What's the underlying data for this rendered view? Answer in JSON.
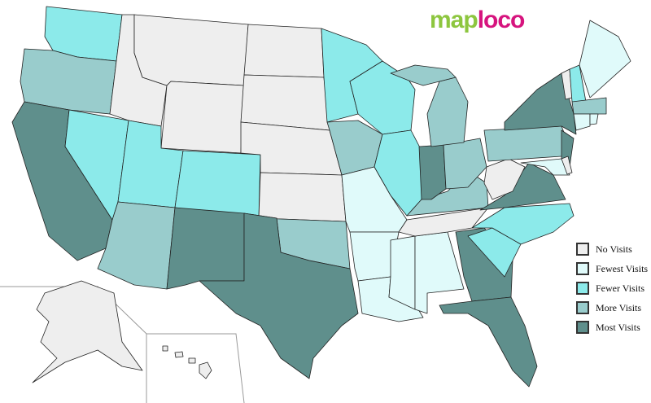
{
  "logo": {
    "part1": "map",
    "part2": "loco"
  },
  "legend": [
    {
      "key": "none",
      "label": "No Visits",
      "color": "#eeeeee"
    },
    {
      "key": "fewest",
      "label": "Fewest Visits",
      "color": "#e0fafa"
    },
    {
      "key": "fewer",
      "label": "Fewer Visits",
      "color": "#8ceaea"
    },
    {
      "key": "more",
      "label": "More Visits",
      "color": "#99cccc"
    },
    {
      "key": "most",
      "label": "Most Visits",
      "color": "#5f8f8c"
    }
  ],
  "states": {
    "WA": "fewer",
    "OR": "more",
    "CA": "most",
    "NV": "fewer",
    "ID": "none",
    "MT": "none",
    "WY": "none",
    "UT": "fewer",
    "CO": "fewer",
    "AZ": "more",
    "NM": "most",
    "ND": "none",
    "SD": "none",
    "NE": "none",
    "KS": "none",
    "OK": "more",
    "TX": "most",
    "MN": "fewer",
    "IA": "more",
    "MO": "fewest",
    "AR": "fewest",
    "LA": "fewest",
    "WI": "fewer",
    "IL": "fewer",
    "MS": "fewest",
    "AL": "fewest",
    "TN": "none",
    "KY": "more",
    "IN": "most",
    "OH": "more",
    "MI": "more",
    "GA": "most",
    "FL": "most",
    "SC": "fewer",
    "NC": "fewer",
    "VA": "most",
    "WV": "none",
    "PA": "more",
    "NY": "most",
    "NJ": "most",
    "MD": "fewest",
    "DE": "none",
    "VT": "none",
    "NH": "fewer",
    "ME": "fewest",
    "MA": "more",
    "CT": "fewest",
    "RI": "fewest",
    "AK": "none",
    "HI": "none"
  }
}
